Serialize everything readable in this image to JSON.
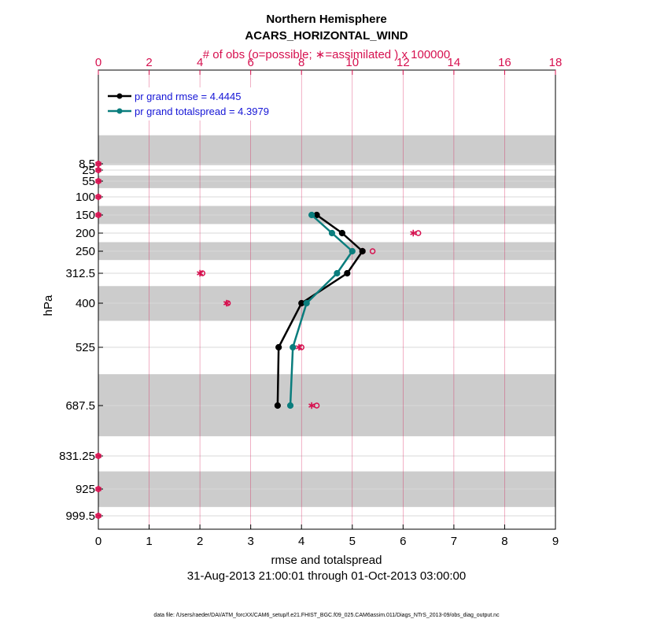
{
  "chart_data": {
    "type": "line",
    "title": "Northern Hemisphere",
    "subtitle": "ACARS_HORIZONTAL_WIND",
    "top_axis_label": "# of obs (o=possible; ∗=assimilated ) x 100000",
    "xlabel": "rmse and totalspread",
    "ylabel": "hPa",
    "date_range": "31-Aug-2013 21:00:01 through 01-Oct-2013 03:00:00",
    "footnote": "data file: /Users/raeder/DAI/ATM_forcXX/CAM6_setup/f.e21.FHIST_BGC.f09_025.CAM6assim.011/Diags_NTrS_2013-09/obs_diag_output.nc",
    "xlim": [
      0,
      9
    ],
    "top_xlim": [
      0,
      18
    ],
    "x_ticks": [
      "0",
      "1",
      "2",
      "3",
      "4",
      "5",
      "6",
      "7",
      "8",
      "9"
    ],
    "top_x_ticks": [
      "0",
      "2",
      "4",
      "6",
      "8",
      "10",
      "12",
      "14",
      "16",
      "18"
    ],
    "levels": [
      8.5,
      25,
      55,
      100,
      150,
      200,
      250,
      312.5,
      400,
      525,
      687.5,
      831.25,
      925,
      999.5
    ],
    "level_labels": [
      "8.5",
      "25",
      "55",
      "100",
      "150",
      "200",
      "250",
      "312.5",
      "400",
      "525",
      "687.5",
      "831.25",
      "925",
      "999.5"
    ],
    "shaded_bands_hPa": [
      [
        5,
        12
      ],
      [
        40,
        75
      ],
      [
        125,
        175
      ],
      [
        225,
        275
      ],
      [
        350,
        450
      ],
      [
        600,
        775
      ],
      [
        875,
        975
      ]
    ],
    "series": [
      {
        "name": "pr grand rmse = 4.4445",
        "color": "#000000",
        "levels": [
          150,
          200,
          250,
          312.5,
          400,
          525,
          687.5
        ],
        "values": [
          4.3,
          4.8,
          5.2,
          4.9,
          4.0,
          3.55,
          3.53
        ]
      },
      {
        "name": "pr grand totalspread = 4.3979",
        "color": "#0a7d7d",
        "levels": [
          150,
          200,
          250,
          312.5,
          400,
          525,
          687.5
        ],
        "values": [
          4.2,
          4.6,
          5.0,
          4.7,
          4.1,
          3.83,
          3.78
        ]
      }
    ],
    "obs_possible_x100000": {
      "levels": [
        8.5,
        25,
        55,
        100,
        150,
        200,
        250,
        312.5,
        400,
        525,
        687.5,
        831.25,
        925,
        999.5
      ],
      "values": [
        0,
        0,
        0,
        0,
        0,
        12.6,
        10.8,
        4.1,
        5.1,
        8.0,
        8.6,
        0,
        0,
        0
      ]
    },
    "obs_assimilated_x100000": {
      "levels": [
        8.5,
        25,
        55,
        100,
        150,
        200,
        250,
        312.5,
        400,
        525,
        687.5,
        831.25,
        925,
        999.5
      ],
      "values": [
        0,
        0,
        0,
        0,
        0,
        12.4,
        10.4,
        4.0,
        5.05,
        7.9,
        8.4,
        0,
        0,
        0
      ]
    }
  },
  "colors": {
    "obs": "#d6104f",
    "band": "#cccccc",
    "grid": "#d6104f",
    "hgrid": "#d9d9d9"
  }
}
